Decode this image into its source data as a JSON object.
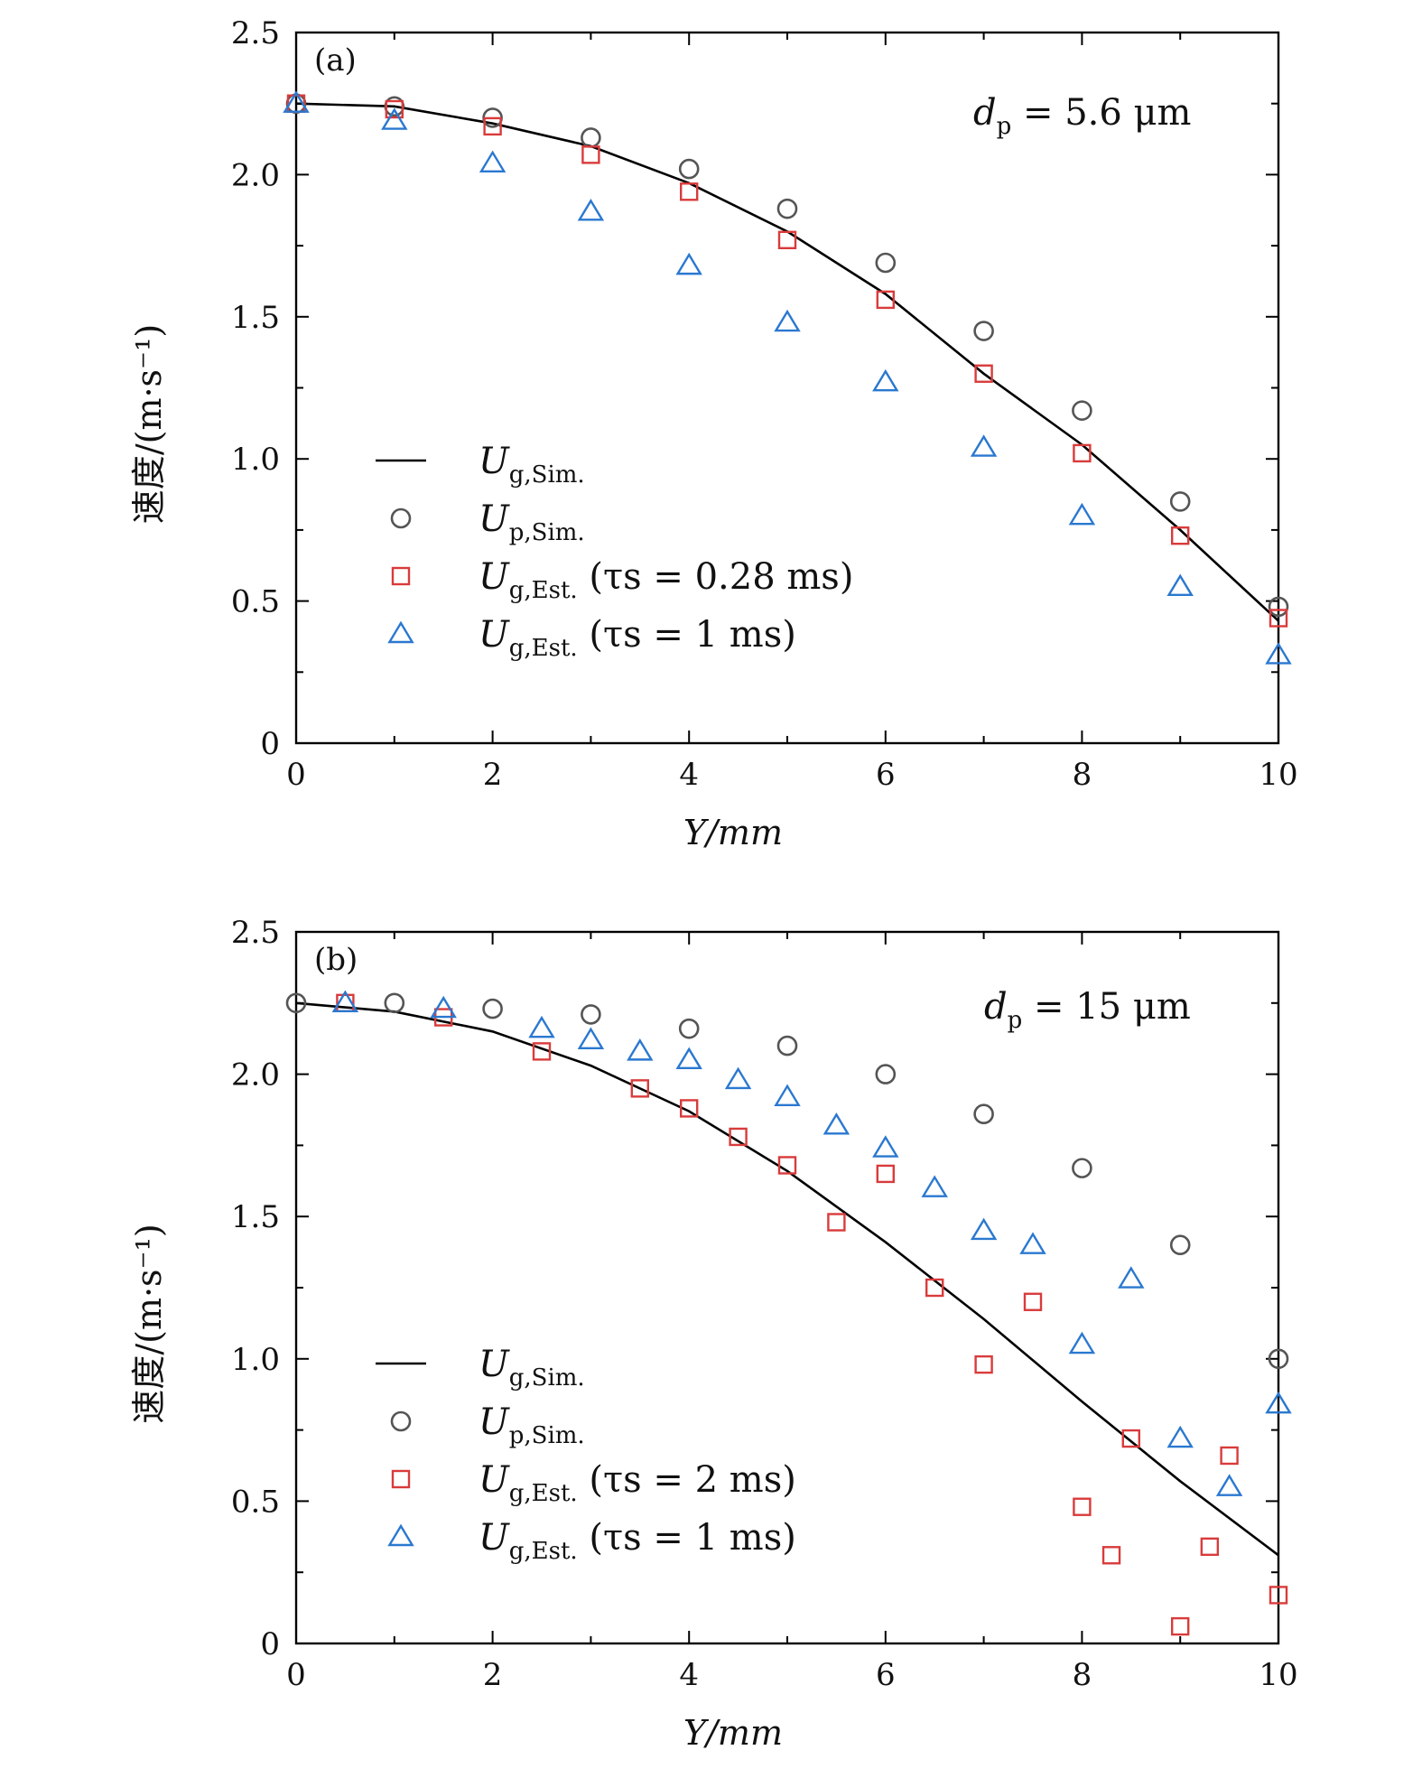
{
  "chart_data": [
    {
      "type": "scatter",
      "panel_label": "(a)",
      "annotation": {
        "symbol": "d",
        "sub": "p",
        "rest": " = 5.6 μm"
      },
      "xlabel": "Y/mm",
      "ylabel": "速度/(m·s⁻¹)",
      "xlim": [
        0,
        10
      ],
      "ylim": [
        0,
        2.5
      ],
      "xticks": [
        "0",
        "2",
        "4",
        "6",
        "8",
        "10"
      ],
      "yticks": [
        "0",
        "0.5",
        "1.0",
        "1.5",
        "2.0",
        "2.5"
      ],
      "legend_position": "lower-left",
      "series": [
        {
          "name": "Ug,Sim.",
          "symbol": "U",
          "sub": "g,Sim.",
          "rest": "",
          "marker": "line",
          "color": "#000000",
          "x": [
            0,
            1,
            2,
            3,
            4,
            5,
            6,
            7,
            8,
            9,
            10
          ],
          "y": [
            2.25,
            2.24,
            2.18,
            2.1,
            1.97,
            1.8,
            1.58,
            1.3,
            1.05,
            0.75,
            0.43
          ]
        },
        {
          "name": "Up,Sim.",
          "symbol": "U",
          "sub": "p,Sim.",
          "rest": "",
          "marker": "circle",
          "color": "#555555",
          "x": [
            0,
            1,
            2,
            3,
            4,
            5,
            6,
            7,
            8,
            9,
            10
          ],
          "y": [
            2.25,
            2.24,
            2.2,
            2.13,
            2.02,
            1.88,
            1.69,
            1.45,
            1.17,
            0.85,
            0.48
          ]
        },
        {
          "name": "Ug,Est. (τs = 0.28 ms)",
          "symbol": "U",
          "sub": "g,Est.",
          "rest": " (τs = 0.28 ms)",
          "marker": "square",
          "color": "#d93b3b",
          "x": [
            0,
            1,
            2,
            3,
            4,
            5,
            6,
            7,
            8,
            9,
            10
          ],
          "y": [
            2.25,
            2.23,
            2.17,
            2.07,
            1.94,
            1.77,
            1.56,
            1.3,
            1.02,
            0.73,
            0.44
          ]
        },
        {
          "name": "Ug,Est. (τs = 1 ms)",
          "symbol": "U",
          "sub": "g,Est.",
          "rest": " (τs = 1 ms)",
          "marker": "triangle",
          "color": "#2a78d0",
          "x": [
            0,
            1,
            2,
            3,
            4,
            5,
            6,
            7,
            8,
            9,
            10
          ],
          "y": [
            2.25,
            2.19,
            2.04,
            1.87,
            1.68,
            1.48,
            1.27,
            1.04,
            0.8,
            0.55,
            0.31
          ]
        }
      ]
    },
    {
      "type": "scatter",
      "panel_label": "(b)",
      "annotation": {
        "symbol": "d",
        "sub": "p",
        "rest": " = 15 μm"
      },
      "xlabel": "Y/mm",
      "ylabel": "速度/(m·s⁻¹)",
      "xlim": [
        0,
        10
      ],
      "ylim": [
        0,
        2.5
      ],
      "xticks": [
        "0",
        "2",
        "4",
        "6",
        "8",
        "10"
      ],
      "yticks": [
        "0",
        "0.5",
        "1.0",
        "1.5",
        "2.0",
        "2.5"
      ],
      "legend_position": "lower-left",
      "series": [
        {
          "name": "Ug,Sim.",
          "symbol": "U",
          "sub": "g,Sim.",
          "rest": "",
          "marker": "line",
          "color": "#000000",
          "x": [
            0,
            1,
            2,
            3,
            4,
            5,
            6,
            7,
            8,
            9,
            10
          ],
          "y": [
            2.25,
            2.22,
            2.15,
            2.03,
            1.87,
            1.66,
            1.41,
            1.14,
            0.85,
            0.57,
            0.31
          ]
        },
        {
          "name": "Up,Sim.",
          "symbol": "U",
          "sub": "p,Sim.",
          "rest": "",
          "marker": "circle",
          "color": "#555555",
          "x": [
            0,
            1,
            2,
            3,
            4,
            5,
            6,
            7,
            8,
            9,
            10
          ],
          "y": [
            2.25,
            2.25,
            2.23,
            2.21,
            2.16,
            2.1,
            2.0,
            1.86,
            1.67,
            1.4,
            1.0
          ]
        },
        {
          "name": "Ug,Est. (τs = 2 ms)",
          "symbol": "U",
          "sub": "g,Est.",
          "rest": " (τs = 2 ms)",
          "marker": "square",
          "color": "#d93b3b",
          "x": [
            0.5,
            1.5,
            2.5,
            3.5,
            4.0,
            4.5,
            5.0,
            5.5,
            6.0,
            6.5,
            7.0,
            7.5,
            8.0,
            8.3,
            8.5,
            9.0,
            9.3,
            9.5,
            10.0
          ],
          "y": [
            2.25,
            2.2,
            2.08,
            1.95,
            1.88,
            1.78,
            1.68,
            1.48,
            1.65,
            1.25,
            0.98,
            1.2,
            0.48,
            0.31,
            0.72,
            0.06,
            0.34,
            0.66,
            0.17
          ]
        },
        {
          "name": "Ug,Est. (τs = 1 ms)",
          "symbol": "U",
          "sub": "g,Est.",
          "rest": " (τs = 1 ms)",
          "marker": "triangle",
          "color": "#2a78d0",
          "x": [
            0.5,
            1.5,
            2.5,
            3.0,
            3.5,
            4.0,
            4.5,
            5.0,
            5.5,
            6.0,
            6.5,
            7.0,
            7.5,
            8.0,
            8.5,
            9.0,
            9.5,
            10.0
          ],
          "y": [
            2.25,
            2.23,
            2.16,
            2.12,
            2.08,
            2.05,
            1.98,
            1.92,
            1.82,
            1.74,
            1.6,
            1.45,
            1.4,
            1.05,
            1.28,
            0.72,
            0.55,
            0.84
          ]
        }
      ]
    }
  ]
}
